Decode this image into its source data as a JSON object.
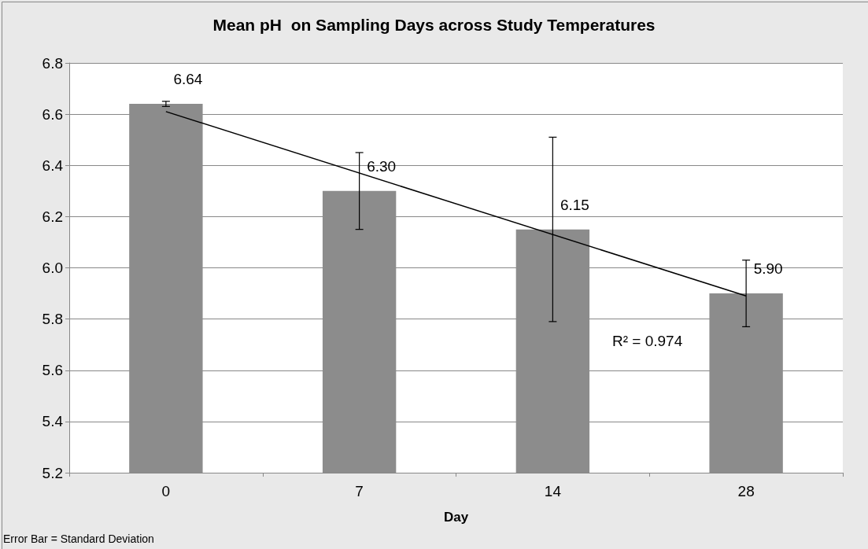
{
  "chart_data": {
    "type": "bar",
    "title": "Mean pH  on Sampling Days across Study Temperatures",
    "xlabel": "Day",
    "categories": [
      "0",
      "7",
      "14",
      "28"
    ],
    "series": [
      {
        "color": "#8c8c8c",
        "values": [
          6.64,
          6.3,
          6.15,
          5.9
        ],
        "errors": [
          0.01,
          0.15,
          0.36,
          0.13
        ],
        "value_labels": [
          "6.64",
          "6.30",
          "6.15",
          "5.90"
        ]
      },
      {
        "type": "line",
        "color": "#000000",
        "x": [
          "0",
          "28"
        ],
        "values": [
          6.61,
          5.89
        ],
        "marker": "none",
        "line_style": "solid"
      }
    ],
    "ylim": [
      5.2,
      6.8
    ],
    "yticks": [
      5.2,
      5.4,
      5.6,
      5.8,
      {
        "value": 6,
        "label": "6.0"
      },
      6.2,
      6.4,
      6.6,
      6.8
    ],
    "grid": "y",
    "annotations": [
      "R² = 0.974",
      "Error Bar = Standard Deviation"
    ]
  }
}
